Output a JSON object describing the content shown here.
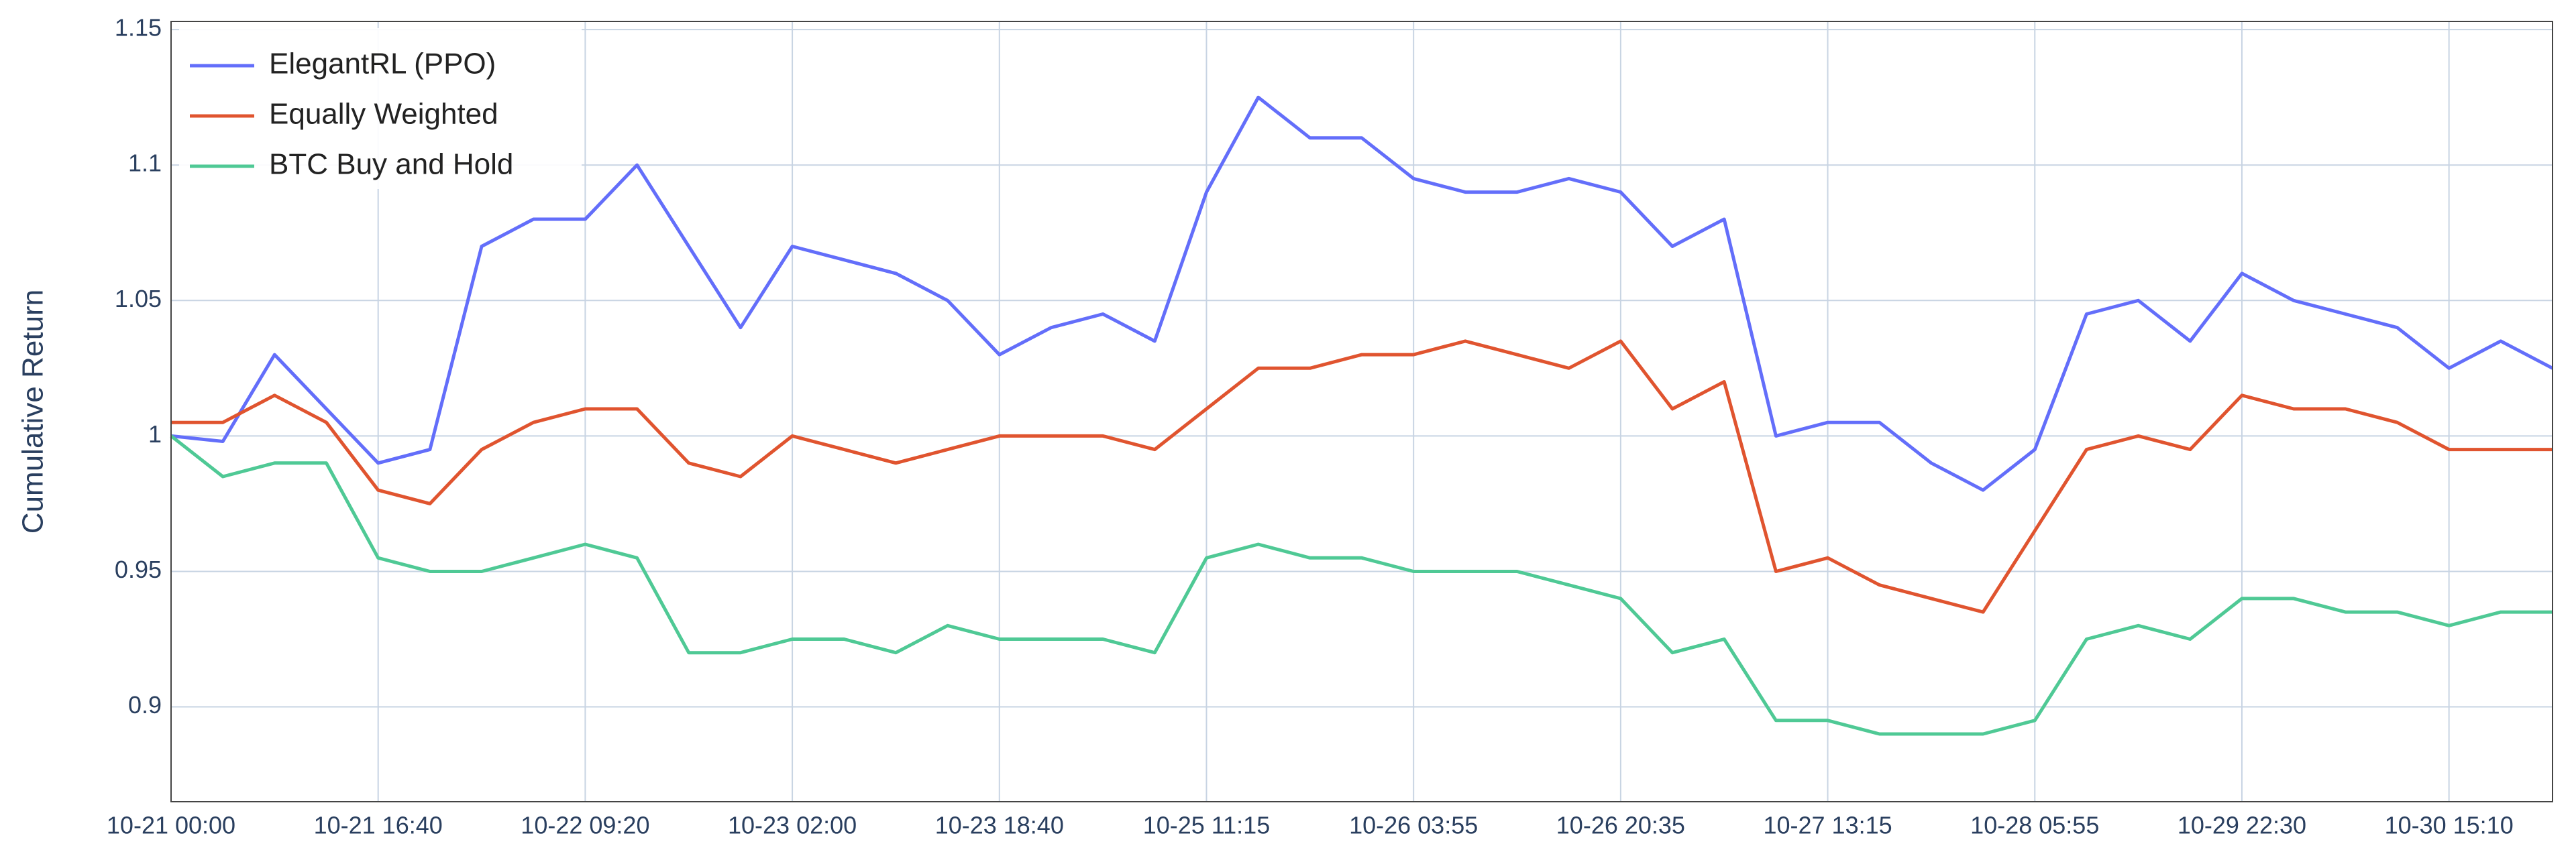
{
  "chart_data": {
    "type": "line",
    "y_label": "Cumulative Return",
    "categories": [
      "10-21 00:00",
      null,
      null,
      null,
      "10-21 16:40",
      null,
      null,
      null,
      "10-22 09:20",
      null,
      null,
      null,
      "10-23 02:00",
      null,
      null,
      null,
      "10-23 18:40",
      null,
      null,
      null,
      "10-25 11:15",
      null,
      null,
      null,
      "10-26 03:55",
      null,
      null,
      null,
      "10-26 20:35",
      null,
      null,
      null,
      "10-27 13:15",
      null,
      null,
      null,
      "10-28 05:55",
      null,
      null,
      null,
      "10-29 22:30",
      null,
      null,
      null,
      "10-30 15:10",
      null,
      null
    ],
    "series": [
      {
        "name": "ElegantRL (PPO)",
        "color": "#636efa",
        "values": [
          1.0,
          0.998,
          1.03,
          1.01,
          0.99,
          0.995,
          1.07,
          1.08,
          1.08,
          1.1,
          1.07,
          1.04,
          1.07,
          1.065,
          1.06,
          1.05,
          1.03,
          1.04,
          1.045,
          1.035,
          1.09,
          1.125,
          1.11,
          1.11,
          1.095,
          1.09,
          1.09,
          1.095,
          1.09,
          1.07,
          1.08,
          1.0,
          1.005,
          1.005,
          0.99,
          0.98,
          0.995,
          1.045,
          1.05,
          1.035,
          1.06,
          1.05,
          1.045,
          1.04,
          1.025,
          1.035,
          1.025
        ]
      },
      {
        "name": "Equally Weighted",
        "color": "#e0542f",
        "values": [
          1.005,
          1.005,
          1.015,
          1.005,
          0.98,
          0.975,
          0.995,
          1.005,
          1.01,
          1.01,
          0.99,
          0.985,
          1.0,
          0.995,
          0.99,
          0.995,
          1.0,
          1.0,
          1.0,
          0.995,
          1.01,
          1.025,
          1.025,
          1.03,
          1.03,
          1.035,
          1.03,
          1.025,
          1.035,
          1.01,
          1.02,
          0.95,
          0.955,
          0.945,
          0.94,
          0.935,
          0.965,
          0.995,
          1.0,
          0.995,
          1.015,
          1.01,
          1.01,
          1.005,
          0.995,
          0.995,
          0.995
        ]
      },
      {
        "name": "BTC Buy and Hold",
        "color": "#4fc995",
        "values": [
          1.0,
          0.985,
          0.99,
          0.99,
          0.955,
          0.95,
          0.95,
          0.955,
          0.96,
          0.955,
          0.92,
          0.92,
          0.925,
          0.925,
          0.92,
          0.93,
          0.925,
          0.925,
          0.925,
          0.92,
          0.955,
          0.96,
          0.955,
          0.955,
          0.95,
          0.95,
          0.95,
          0.945,
          0.94,
          0.92,
          0.925,
          0.895,
          0.895,
          0.89,
          0.89,
          0.89,
          0.895,
          0.925,
          0.93,
          0.925,
          0.94,
          0.94,
          0.935,
          0.935,
          0.93,
          0.935,
          0.935
        ]
      }
    ],
    "ylim": [
      0.865,
      1.153
    ],
    "yticks": [
      0.9,
      0.95,
      1,
      1.05,
      1.1,
      1.15
    ],
    "grid": true,
    "legend": "upper left"
  }
}
